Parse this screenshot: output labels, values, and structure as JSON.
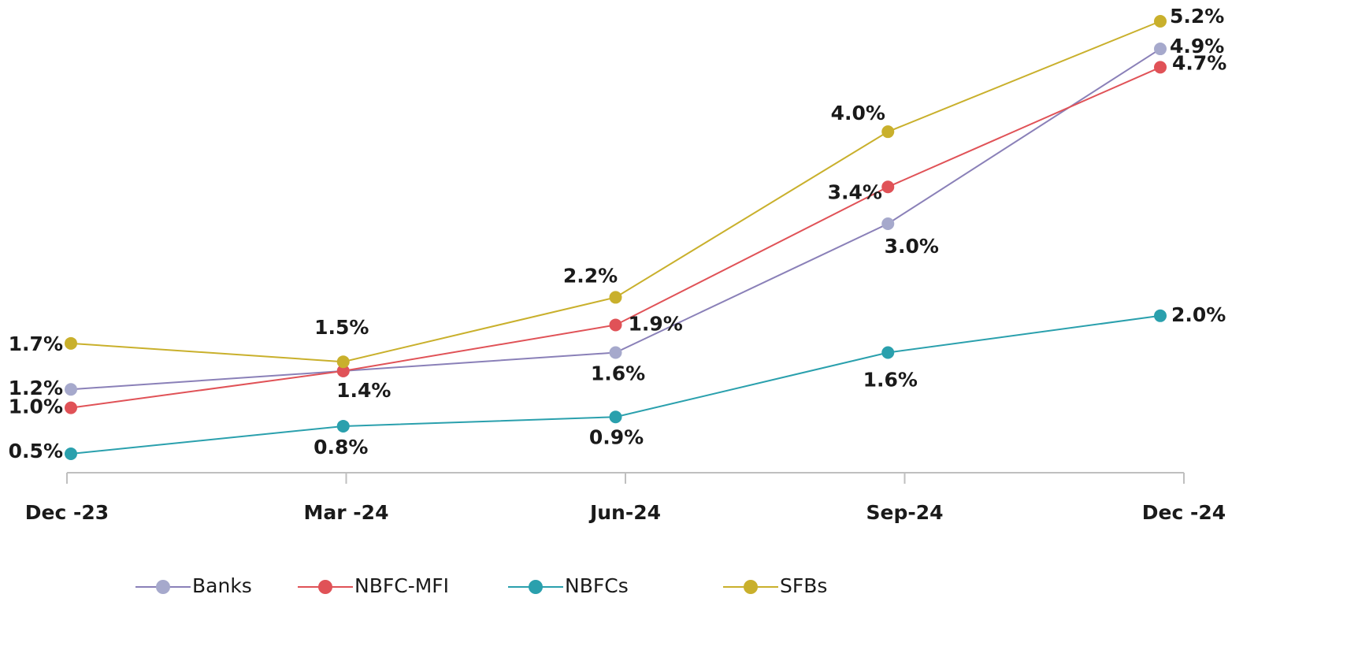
{
  "chart_data": {
    "type": "line",
    "categories": [
      "Dec -23",
      "Mar -24",
      "Jun-24",
      "Sep-24",
      "Dec -24"
    ],
    "series": [
      {
        "name": "Banks",
        "color": "#8a80b8",
        "marker_color": "#a6a9cc",
        "values": [
          1.2,
          1.4,
          1.6,
          3.0,
          4.9
        ],
        "value_labels": [
          "1.2%",
          null,
          "1.6%",
          "3.0%",
          "4.9%"
        ]
      },
      {
        "name": "NBFC-MFI",
        "color": "#e05257",
        "marker_color": "#e05257",
        "values": [
          1.0,
          1.4,
          1.9,
          3.4,
          4.7
        ],
        "value_labels": [
          "1.0%",
          "1.4%",
          "1.9%",
          "3.4%",
          "4.7%"
        ]
      },
      {
        "name": "NBFCs",
        "color": "#2aa0ad",
        "marker_color": "#2aa0ad",
        "values": [
          0.5,
          0.8,
          0.9,
          1.6,
          2.0
        ],
        "value_labels": [
          "0.5%",
          "0.8%",
          "0.9%",
          "1.6%",
          "2.0%"
        ]
      },
      {
        "name": "SFBs",
        "color": "#c9b02c",
        "marker_color": "#c9b02c",
        "values": [
          1.7,
          1.5,
          2.2,
          4.0,
          5.2
        ],
        "value_labels": [
          "1.7%",
          "1.5%",
          "2.2%",
          "4.0%",
          "5.2%"
        ]
      }
    ]
  }
}
